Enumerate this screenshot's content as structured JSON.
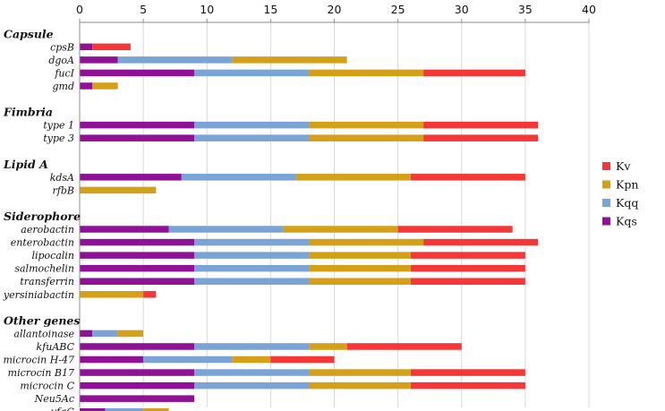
{
  "chart_data": {
    "type": "bar",
    "orientation": "horizontal",
    "stacked": true,
    "title": "",
    "xlabel": "",
    "ylabel": "",
    "xlim": [
      0,
      40
    ],
    "x_ticks": [
      0,
      5,
      10,
      15,
      20,
      25,
      30,
      35,
      40
    ],
    "x_axis_position": "top",
    "grid": true,
    "legend_position": "right",
    "groups": [
      {
        "label": "Capsule",
        "categories": [
          "cpsB",
          "dgoA",
          "fucI",
          "gmd"
        ]
      },
      {
        "label": "Fimbria",
        "categories": [
          "type 1",
          "type 3"
        ]
      },
      {
        "label": "Lipid A",
        "categories": [
          "kdsA",
          "rfbB"
        ]
      },
      {
        "label": "Siderophore",
        "categories": [
          "aerobactin",
          "enterobactin",
          "lipocalin",
          "salmochelin",
          "transferrin",
          "yersiniabactin"
        ]
      },
      {
        "label": "Other genes",
        "categories": [
          "allantoinase",
          "kfuABC",
          "microcin H-47",
          "microcin B17",
          "microcin C",
          "Neu5Ac",
          "yfgG"
        ]
      }
    ],
    "categories": [
      "cpsB",
      "dgoA",
      "fucI",
      "gmd",
      "type 1",
      "type 3",
      "kdsA",
      "rfbB",
      "aerobactin",
      "enterobactin",
      "lipocalin",
      "salmochelin",
      "transferrin",
      "yersiniabactin",
      "allantoinase",
      "kfuABC",
      "microcin H-47",
      "microcin B17",
      "microcin C",
      "Neu5Ac",
      "yfgG"
    ],
    "series": [
      {
        "name": "Kqs",
        "color": "#8e1196",
        "values": [
          1,
          3,
          9,
          1,
          9,
          9,
          8,
          0,
          7,
          9,
          9,
          9,
          9,
          0,
          1,
          9,
          5,
          9,
          9,
          9,
          2
        ]
      },
      {
        "name": "Kqq",
        "color": "#7aa3d6",
        "values": [
          0,
          9,
          9,
          0,
          9,
          9,
          9,
          0,
          9,
          9,
          9,
          9,
          9,
          0,
          2,
          9,
          7,
          9,
          9,
          0,
          3
        ]
      },
      {
        "name": "Kpn",
        "color": "#d4a017",
        "values": [
          0,
          9,
          9,
          2,
          9,
          9,
          9,
          6,
          9,
          9,
          8,
          8,
          8,
          5,
          2,
          3,
          3,
          8,
          8,
          0,
          2
        ]
      },
      {
        "name": "Kv",
        "color": "#f53737",
        "values": [
          3,
          0,
          8,
          0,
          9,
          9,
          9,
          0,
          9,
          9,
          9,
          9,
          9,
          1,
          0,
          9,
          5,
          9,
          9,
          0,
          0
        ]
      }
    ],
    "legend_order": [
      "Kv",
      "Kpn",
      "Kqq",
      "Kqs"
    ]
  }
}
